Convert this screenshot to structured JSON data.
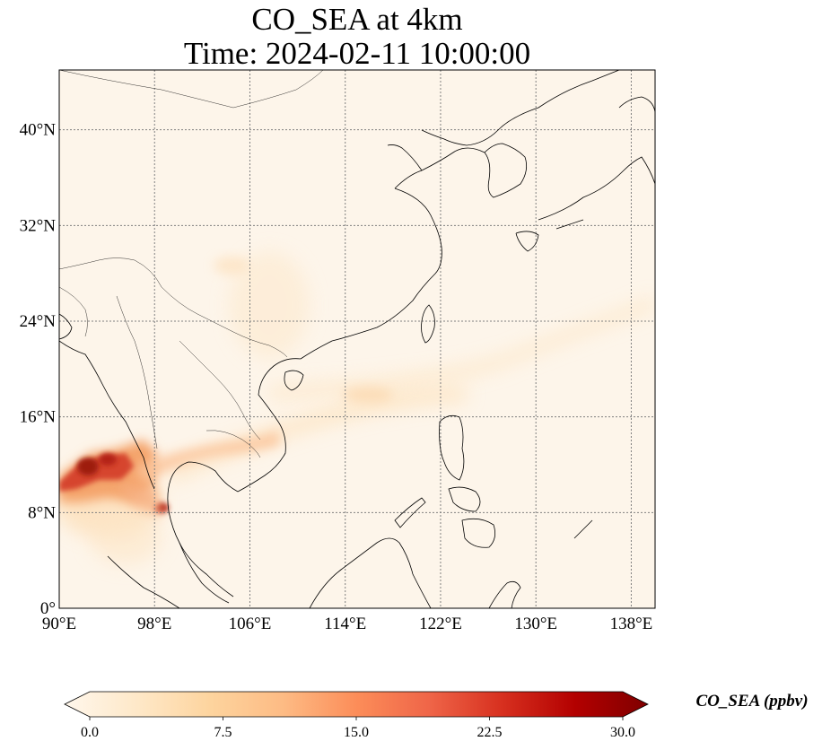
{
  "title": {
    "line1": "CO_SEA at 4km",
    "line2": "Time: 2024-02-11 10:00:00"
  },
  "map": {
    "lon_range": [
      90,
      140
    ],
    "lat_range": [
      0,
      45
    ],
    "grid": "dotted",
    "lon_ticks": [
      {
        "value": 90,
        "label": "90°E"
      },
      {
        "value": 98,
        "label": "98°E"
      },
      {
        "value": 106,
        "label": "106°E"
      },
      {
        "value": 114,
        "label": "114°E"
      },
      {
        "value": 122,
        "label": "122°E"
      },
      {
        "value": 130,
        "label": "130°E"
      },
      {
        "value": 138,
        "label": "138°E"
      }
    ],
    "lat_ticks": [
      {
        "value": 0,
        "label": "0°"
      },
      {
        "value": 8,
        "label": "8°N"
      },
      {
        "value": 16,
        "label": "16°N"
      },
      {
        "value": 24,
        "label": "24°N"
      },
      {
        "value": 32,
        "label": "32°N"
      },
      {
        "value": 40,
        "label": "40°N"
      }
    ],
    "colors": {
      "background": "#fdf5ea",
      "coastline": "#000000",
      "gridline": "#808080"
    }
  },
  "colorbar": {
    "label": "CO_SEA (ppbv)",
    "min": 0,
    "max": 30,
    "extend": "both",
    "colormap": "OrRd",
    "tick_labels": [
      {
        "value": 0,
        "label": "0.0"
      },
      {
        "value": 7.5,
        "label": "7.5"
      },
      {
        "value": 15,
        "label": "15.0"
      },
      {
        "value": 22.5,
        "label": "22.5"
      },
      {
        "value": 30,
        "label": "30.0"
      }
    ],
    "stops": [
      "#fff7ec",
      "#fee8c8",
      "#fdd49e",
      "#fdbb84",
      "#fc8d59",
      "#ef6548",
      "#d7301f",
      "#b30000",
      "#7f0000"
    ]
  }
}
